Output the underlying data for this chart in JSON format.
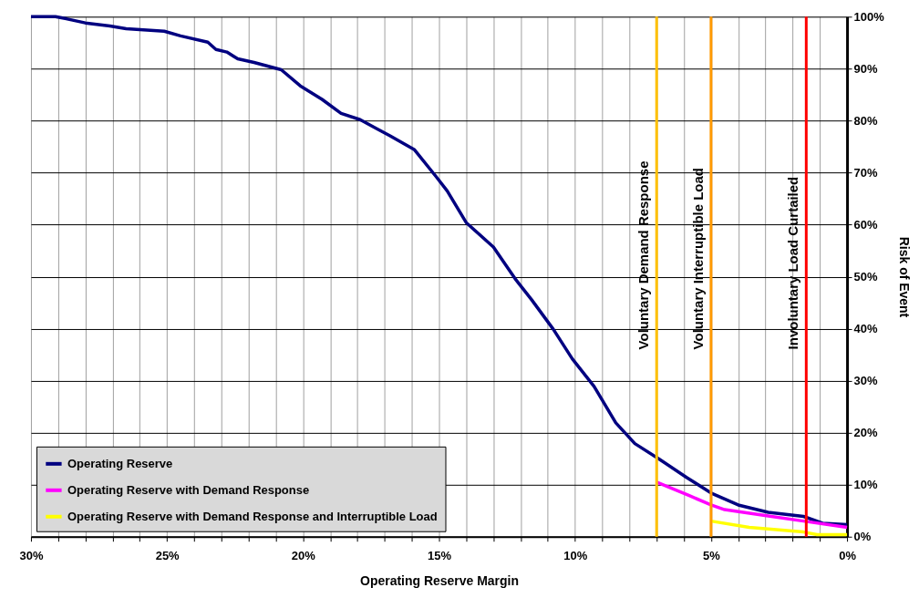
{
  "chart_data": {
    "type": "line",
    "xlabel": "Operating Reserve Margin",
    "ylabel": "Risk of Event",
    "xlim": [
      30,
      0
    ],
    "ylim": [
      0,
      100
    ],
    "xticks": [
      {
        "value": 30,
        "label": "30%"
      },
      {
        "value": 29,
        "label": null
      },
      {
        "value": 28,
        "label": null
      },
      {
        "value": 27,
        "label": null
      },
      {
        "value": 26,
        "label": null
      },
      {
        "value": 25,
        "label": "25%"
      },
      {
        "value": 24,
        "label": null
      },
      {
        "value": 23,
        "label": null
      },
      {
        "value": 22,
        "label": null
      },
      {
        "value": 21,
        "label": null
      },
      {
        "value": 20,
        "label": "20%"
      },
      {
        "value": 19,
        "label": null
      },
      {
        "value": 18,
        "label": null
      },
      {
        "value": 17,
        "label": null
      },
      {
        "value": 16,
        "label": null
      },
      {
        "value": 15,
        "label": "15%"
      },
      {
        "value": 14,
        "label": null
      },
      {
        "value": 13,
        "label": null
      },
      {
        "value": 12,
        "label": null
      },
      {
        "value": 11,
        "label": null
      },
      {
        "value": 10,
        "label": "10%"
      },
      {
        "value": 9,
        "label": null
      },
      {
        "value": 8,
        "label": null
      },
      {
        "value": 7,
        "label": null
      },
      {
        "value": 6,
        "label": null
      },
      {
        "value": 5,
        "label": "5%"
      },
      {
        "value": 4,
        "label": null
      },
      {
        "value": 3,
        "label": null
      },
      {
        "value": 2,
        "label": null
      },
      {
        "value": 1,
        "label": null
      },
      {
        "value": 0,
        "label": "0%"
      }
    ],
    "yticks": [
      {
        "value": 0,
        "label": "0%"
      },
      {
        "value": 10,
        "label": "10%"
      },
      {
        "value": 20,
        "label": "20%"
      },
      {
        "value": 30,
        "label": "30%"
      },
      {
        "value": 40,
        "label": "40%"
      },
      {
        "value": 50,
        "label": "50%"
      },
      {
        "value": 60,
        "label": "60%"
      },
      {
        "value": 70,
        "label": "70%"
      },
      {
        "value": 80,
        "label": "80%"
      },
      {
        "value": 90,
        "label": "90%"
      },
      {
        "value": 100,
        "label": "100%"
      }
    ],
    "grid": true,
    "legend": "bottom left",
    "line_style": "solid",
    "marker": "none",
    "series": [
      {
        "name": "Operating Reserve",
        "color": "#000080",
        "x": [
          30,
          29.1,
          28.7,
          28.0,
          27.1,
          26.5,
          25.1,
          24.5,
          23.5,
          23.2,
          22.8,
          22.4,
          21.8,
          20.8,
          20.1,
          19.3,
          18.6,
          17.9,
          17.3,
          16.8,
          15.9,
          15.1,
          14.7,
          14.0,
          13.0,
          12.2,
          11.6,
          10.8,
          10.1,
          9.3,
          8.5,
          7.8,
          6.9,
          5.9,
          5.0,
          4.0,
          2.9,
          1.6,
          0.9,
          0
        ],
        "values": [
          100,
          100,
          99.6,
          98.8,
          98.2,
          97.7,
          97.2,
          96.3,
          95.1,
          93.7,
          93.2,
          91.9,
          91.2,
          89.8,
          86.7,
          84.1,
          81.4,
          80.2,
          78.5,
          77.1,
          74.4,
          69.2,
          66.5,
          60.4,
          55.7,
          49.6,
          45.6,
          39.9,
          34.2,
          28.9,
          21.9,
          17.9,
          14.9,
          11.4,
          8.4,
          6.1,
          4.7,
          3.9,
          2.6,
          2.3
        ]
      },
      {
        "name": "Operating Reserve with Demand Response",
        "color": "#ff00ff",
        "x": [
          7.0,
          5.8,
          5.0,
          4.5,
          2.9,
          1.6,
          0
        ],
        "values": [
          10.5,
          7.9,
          6.1,
          5.2,
          4.0,
          3.0,
          1.8
        ]
      },
      {
        "name": "Operating Reserve with Demand Response and Interruptible Load",
        "color": "#ffff00",
        "x": [
          5.0,
          3.6,
          1.6,
          1.1,
          0
        ],
        "values": [
          3.0,
          1.8,
          0.9,
          0.4,
          0.4
        ]
      }
    ],
    "ref_lines": [
      {
        "axis": "x",
        "value": 7,
        "label": "Voluntary Demand Response",
        "color": "#ffc000"
      },
      {
        "axis": "x",
        "value": 5,
        "label": "Voluntary Interruptible Load",
        "color": "#ff9900"
      },
      {
        "axis": "x",
        "value": 1.5,
        "label": "Involuntary Load Curtailed",
        "color": "#ff0000"
      }
    ]
  }
}
